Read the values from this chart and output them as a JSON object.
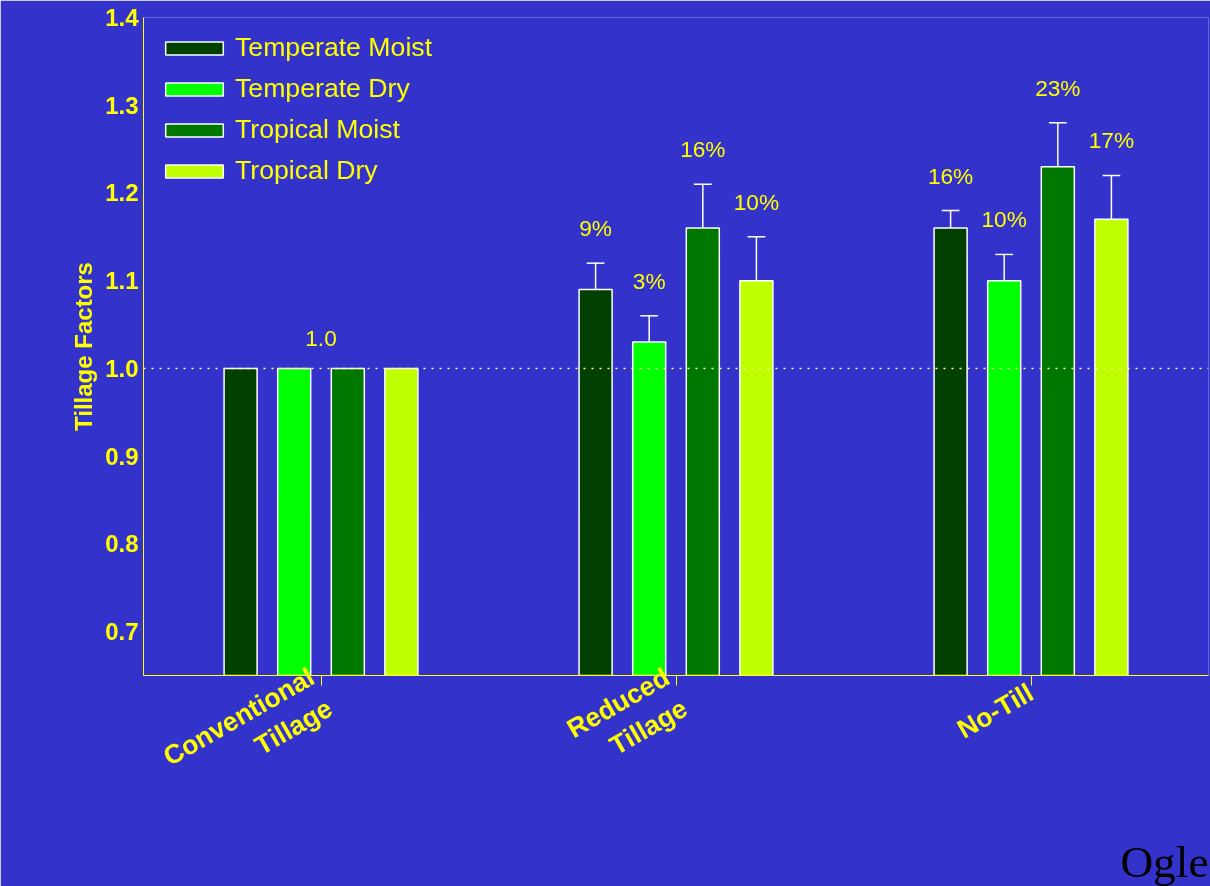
{
  "chart_data": {
    "type": "bar",
    "ylabel": "Tillage Factors",
    "categories": [
      "Conventional\nTillage",
      "Reduced\nTillage",
      "No-Till"
    ],
    "series": [
      {
        "name": "Temperate Moist",
        "color": "#004000",
        "values": [
          1.0,
          1.09,
          1.16
        ],
        "errors": [
          null,
          [
            1.09,
            1.12
          ],
          [
            1.16,
            1.18
          ]
        ]
      },
      {
        "name": "Temperate Dry",
        "color": "#00ff00",
        "values": [
          1.0,
          1.03,
          1.1
        ],
        "errors": [
          null,
          [
            1.03,
            1.06
          ],
          [
            1.1,
            1.13
          ]
        ]
      },
      {
        "name": "Tropical Moist",
        "color": "#007800",
        "values": [
          1.0,
          1.16,
          1.23
        ],
        "errors": [
          null,
          [
            1.16,
            1.21
          ],
          [
            1.23,
            1.28
          ]
        ]
      },
      {
        "name": "Tropical Dry",
        "color": "#bfff00",
        "values": [
          1.0,
          1.1,
          1.17
        ],
        "errors": [
          null,
          [
            1.1,
            1.15
          ],
          [
            1.17,
            1.22
          ]
        ]
      }
    ],
    "ylim": [
      0.65,
      1.4
    ],
    "yticks": [
      0.7,
      0.8,
      0.9,
      {
        "value": 1.0,
        "label": "1.0"
      },
      1.1,
      1.2,
      1.3,
      1.4
    ],
    "ref_lines": [
      {
        "axis": "y",
        "value": 1.0,
        "label": null,
        "color": "#ffff99",
        "line_style": "dotted"
      }
    ],
    "annotations": [
      {
        "text": "1.0",
        "x": "Conventional\nTillage",
        "y": 1.0
      },
      "9%",
      "3%",
      "16%",
      "10%",
      "16%",
      "10%",
      "23%",
      "17%",
      "Ogle"
    ],
    "grid": false,
    "legend": "top left"
  }
}
